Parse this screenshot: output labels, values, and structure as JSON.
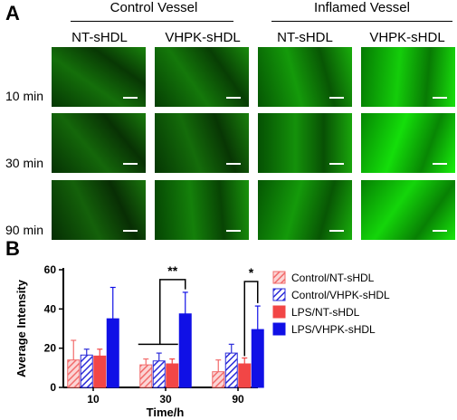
{
  "panelA": {
    "letter": "A",
    "groups": [
      "Control Vessel",
      "Inflamed Vessel"
    ],
    "columns": [
      "NT-sHDL",
      "VHPK-sHDL",
      "NT-sHDL",
      "VHPK-sHDL"
    ],
    "rows": [
      "10 min",
      "30 min",
      "90 min"
    ],
    "brightness": [
      [
        0.3,
        0.35,
        0.55,
        0.85
      ],
      [
        0.25,
        0.28,
        0.5,
        0.95
      ],
      [
        0.22,
        0.4,
        0.55,
        0.9
      ]
    ],
    "tile_color": "#3ddc28"
  },
  "panelB": {
    "letter": "B"
  },
  "chart_data": {
    "type": "bar",
    "categories": [
      "10",
      "30",
      "90"
    ],
    "xlabel": "Time/h",
    "ylabel": "Average Intensity",
    "ylim": [
      0,
      60
    ],
    "yticks": [
      0,
      20,
      40,
      60
    ],
    "series": [
      {
        "name": "Control/NT-sHDL",
        "values": [
          14,
          11.5,
          8
        ],
        "errors": [
          10,
          3,
          6
        ],
        "color": "#f26b6b",
        "pattern": "hatch-red"
      },
      {
        "name": "Control/VHPK-sHDL",
        "values": [
          16.5,
          13.5,
          17.5
        ],
        "errors": [
          3,
          4,
          4.5
        ],
        "color": "#2b2bd9",
        "pattern": "hatch-blue"
      },
      {
        "name": "LPS/NT-sHDL",
        "values": [
          16,
          12,
          12
        ],
        "errors": [
          3.5,
          2.5,
          3
        ],
        "color": "#f24646",
        "pattern": "solid"
      },
      {
        "name": "LPS/VHPK-sHDL",
        "values": [
          35,
          37.5,
          29.5
        ],
        "errors": [
          16,
          11,
          12
        ],
        "color": "#1010e6",
        "pattern": "solid"
      }
    ],
    "significance": [
      {
        "category": "30",
        "label": "**"
      },
      {
        "category": "90",
        "label": "*"
      }
    ],
    "legend_position": "right"
  }
}
